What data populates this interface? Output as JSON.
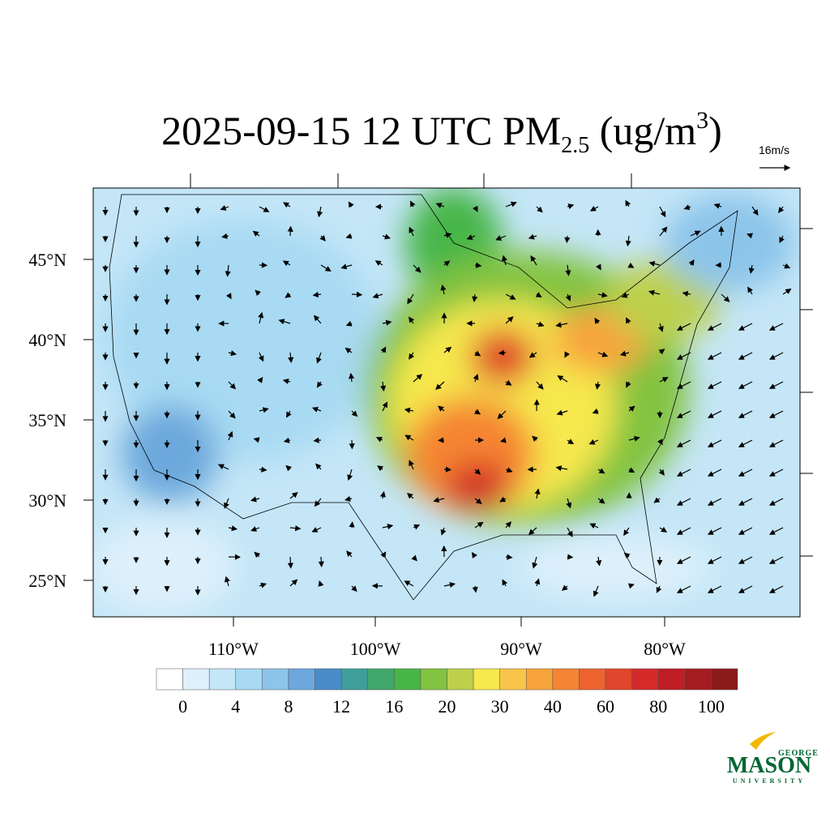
{
  "title": {
    "main": "2025-09-15 12 UTC PM",
    "subscript": "2.5",
    "unit_open": " (ug/m",
    "superscript": "3",
    "unit_close": ")"
  },
  "wind_legend": "16m/s",
  "lat_labels": [
    "45°N",
    "40°N",
    "35°N",
    "30°N",
    "25°N"
  ],
  "lon_labels": [
    "110°W",
    "100°W",
    "90°W",
    "80°W"
  ],
  "colorbar": {
    "colors": [
      "#ffffff",
      "#ddf0fb",
      "#c4e6f7",
      "#a8daf3",
      "#8cc5ea",
      "#6ca8dc",
      "#4a8cc9",
      "#3f9e9a",
      "#3fa86a",
      "#47b648",
      "#82c341",
      "#bdd04c",
      "#f6e84d",
      "#f9c44a",
      "#f8a43c",
      "#f58533",
      "#ec6330",
      "#e0462b",
      "#d42a2a",
      "#be1e24",
      "#a51b20",
      "#8b1a1a"
    ],
    "labels": [
      0,
      4,
      8,
      12,
      16,
      20,
      30,
      40,
      60,
      80,
      100
    ]
  },
  "logo": {
    "top": "GEORGE",
    "middle": "MASON",
    "bottom": "UNIVERSITY"
  }
}
